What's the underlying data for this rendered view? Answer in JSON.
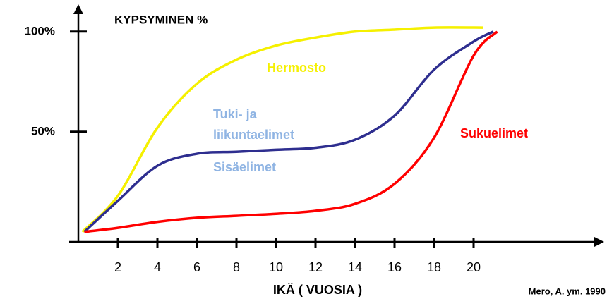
{
  "chart_data": {
    "type": "line",
    "title": "KYPSYMINEN %",
    "x_label": "IKÄ ( VUOSIA )",
    "source": "Mero, A. ym. 1990",
    "xlim": [
      0,
      26.5
    ],
    "ylim": [
      -5,
      110
    ],
    "xticks": [
      2,
      4,
      6,
      8,
      10,
      12,
      14,
      16,
      18,
      20
    ],
    "yticks": [
      {
        "value": 50,
        "label": "50%"
      },
      {
        "value": 100,
        "label": "100%"
      }
    ],
    "series": [
      {
        "color": "#f5f000",
        "x": [
          0.2,
          2,
          4,
          6,
          8,
          10,
          12,
          14,
          16,
          18,
          20.5
        ],
        "values": [
          0,
          18,
          52,
          74,
          86,
          93,
          97,
          100,
          101,
          102,
          102
        ]
      },
      {
        "color": "#2e2e8f",
        "x": [
          0.3,
          2,
          4,
          6,
          8,
          10,
          12,
          14,
          16,
          18,
          20,
          21
        ],
        "values": [
          0,
          15.5,
          33,
          39,
          40,
          41,
          42,
          46,
          58,
          81,
          95,
          100
        ]
      },
      {
        "color": "#ff0000",
        "x": [
          0.3,
          2,
          4,
          6,
          8,
          10,
          12,
          14,
          16,
          18,
          20,
          21.2
        ],
        "values": [
          0,
          2,
          5,
          7,
          8,
          9,
          10.5,
          14,
          24,
          47,
          88,
          100
        ]
      }
    ],
    "annotations": [
      {
        "text": "Hermosto",
        "color": "#f5f000"
      },
      {
        "text": "Tuki- ja",
        "color": "#8fb4e3"
      },
      {
        "text": "liikuntaelimet",
        "color": "#8fb4e3"
      },
      {
        "text": "Sisäelimet",
        "color": "#8fb4e3"
      },
      {
        "text": "Sukuelimet",
        "color": "#ff0000"
      }
    ]
  }
}
